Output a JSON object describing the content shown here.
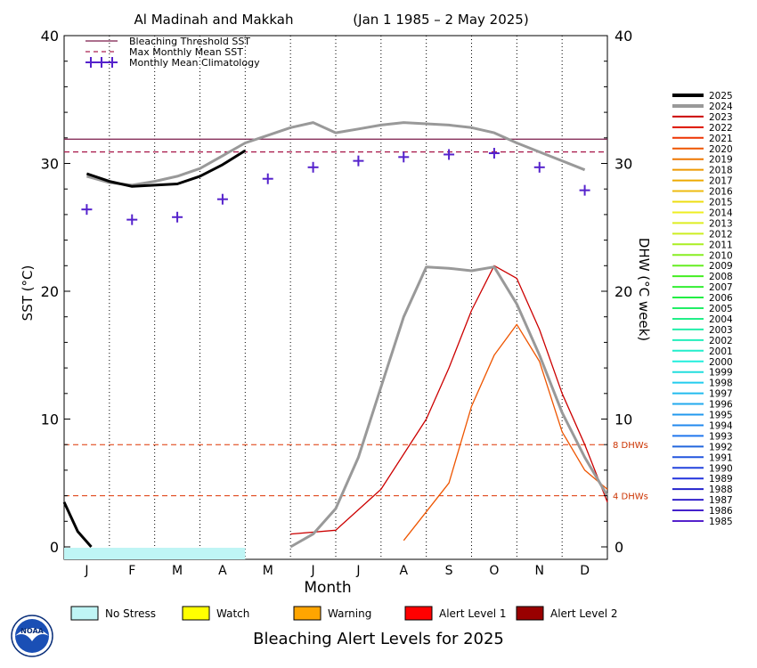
{
  "chart_data": {
    "type": "line",
    "title": "Al Madinah and Makkah",
    "subtitle": "(Jan 1 1985 – 2 May 2025)",
    "xlabel": "Month",
    "ylabel_left": "SST (°C)",
    "ylabel_right": "DHW (°C week)",
    "ylim_left": [
      0,
      40
    ],
    "ylim_right": [
      0,
      40
    ],
    "month_labels": [
      "J",
      "F",
      "M",
      "A",
      "M",
      "J",
      "J",
      "A",
      "S",
      "O",
      "N",
      "D"
    ],
    "y_ticks_left": [
      "0",
      "10",
      "20",
      "30",
      "40"
    ],
    "y_ticks_right": [
      "0",
      "10",
      "20",
      "30",
      "40"
    ],
    "bleaching_threshold_sst": 31.9,
    "max_monthly_mean_sst": 30.9,
    "dhw_reference_lines": [
      {
        "value": 8,
        "label": "8 DHWs"
      },
      {
        "value": 4,
        "label": "4 DHWs"
      }
    ],
    "legend": {
      "threshold_label": "Bleaching Threshold SST",
      "mmm_label": "Max Monthly Mean SST",
      "climatology_label": "Monthly Mean Climatology"
    },
    "climatology": {
      "months": [
        1,
        2,
        3,
        4,
        5,
        6,
        7,
        8,
        9,
        10,
        11,
        12
      ],
      "sst": [
        26.4,
        25.6,
        25.8,
        27.2,
        28.8,
        29.7,
        30.2,
        30.5,
        30.7,
        30.8,
        29.7,
        27.9
      ]
    },
    "series": [
      {
        "name": "2025",
        "color": "#000000",
        "sst_months": [
          0.5,
          1.0,
          1.5,
          2.0,
          2.5,
          3.0,
          3.5,
          4.0
        ],
        "sst": [
          29.2,
          28.6,
          28.2,
          28.3,
          28.4,
          29.0,
          29.9,
          31.0
        ],
        "dhw_months": [
          0.0,
          0.3,
          0.6
        ],
        "dhw": [
          3.5,
          1.2,
          0.0
        ]
      },
      {
        "name": "2024",
        "color": "#999999",
        "sst_months": [
          0.5,
          1.0,
          1.5,
          2.0,
          2.5,
          3.0,
          3.5,
          4.0,
          4.5,
          5.0,
          5.5,
          6.0,
          6.5,
          7.0,
          7.5,
          8.0,
          8.5,
          9.0,
          9.5,
          10.0,
          10.5,
          11.0,
          11.5
        ],
        "sst": [
          29.0,
          28.5,
          28.3,
          28.6,
          29.0,
          29.6,
          30.6,
          31.6,
          32.2,
          32.8,
          33.2,
          32.4,
          32.7,
          33.0,
          33.2,
          33.1,
          33.0,
          32.8,
          32.4,
          31.6,
          30.9,
          30.2,
          29.5
        ],
        "dhw_months": [
          5.0,
          5.5,
          6.0,
          6.5,
          7.0,
          7.5,
          8.0,
          8.5,
          9.0,
          9.5,
          10.0,
          10.5,
          11.0,
          11.5,
          12.0
        ],
        "dhw": [
          0.0,
          1.0,
          3.0,
          7.0,
          12.5,
          18.0,
          21.9,
          21.8,
          21.6,
          21.9,
          19.0,
          15.0,
          10.5,
          7.0,
          4.0
        ]
      },
      {
        "name": "2023",
        "color": "#cc0000",
        "dhw_months": [
          5.0,
          6.0,
          7.0,
          8.0,
          8.5,
          9.0,
          9.5,
          10.0,
          10.5,
          11.0,
          11.5,
          12.0
        ],
        "dhw": [
          1.0,
          1.3,
          4.5,
          10.0,
          14.0,
          18.5,
          22.0,
          21.0,
          17.0,
          12.0,
          8.0,
          3.5
        ]
      },
      {
        "name": "2022",
        "color": "#dd1100"
      },
      {
        "name": "2021",
        "color": "#ee3300"
      },
      {
        "name": "2020",
        "color": "#ee5500",
        "dhw_months": [
          7.5,
          8.5,
          9.0,
          9.5,
          10.0,
          10.5,
          11.0,
          11.5,
          12.0
        ],
        "dhw": [
          0.5,
          5.0,
          11.0,
          15.0,
          17.4,
          14.5,
          9.0,
          6.0,
          4.5
        ]
      },
      {
        "name": "2019",
        "color": "#ee7700"
      },
      {
        "name": "2018",
        "color": "#ee9900"
      },
      {
        "name": "2017",
        "color": "#eeaa00"
      },
      {
        "name": "2016",
        "color": "#eebb11"
      },
      {
        "name": "2015",
        "color": "#eedd11"
      },
      {
        "name": "2014",
        "color": "#eeee22"
      },
      {
        "name": "2013",
        "color": "#ddee22"
      },
      {
        "name": "2012",
        "color": "#ccee22"
      },
      {
        "name": "2011",
        "color": "#aaee22"
      },
      {
        "name": "2010",
        "color": "#88ee22"
      },
      {
        "name": "2009",
        "color": "#66ee22"
      },
      {
        "name": "2008",
        "color": "#44ee22"
      },
      {
        "name": "2007",
        "color": "#33ee33"
      },
      {
        "name": "2006",
        "color": "#22ee44"
      },
      {
        "name": "2005",
        "color": "#22ee66"
      },
      {
        "name": "2004",
        "color": "#22ee88"
      },
      {
        "name": "2003",
        "color": "#22eeaa"
      },
      {
        "name": "2002",
        "color": "#22eebb"
      },
      {
        "name": "2001",
        "color": "#22eecc"
      },
      {
        "name": "2000",
        "color": "#22eedd"
      },
      {
        "name": "1999",
        "color": "#22dddd"
      },
      {
        "name": "1998",
        "color": "#22ccee"
      },
      {
        "name": "1997",
        "color": "#22bbee"
      },
      {
        "name": "1996",
        "color": "#22aaee"
      },
      {
        "name": "1995",
        "color": "#2299ee"
      },
      {
        "name": "1994",
        "color": "#2288ee"
      },
      {
        "name": "1993",
        "color": "#2277ee"
      },
      {
        "name": "1992",
        "color": "#2266dd"
      },
      {
        "name": "1991",
        "color": "#2255dd"
      },
      {
        "name": "1990",
        "color": "#2244dd"
      },
      {
        "name": "1989",
        "color": "#2233dd"
      },
      {
        "name": "1988",
        "color": "#2222cc"
      },
      {
        "name": "1987",
        "color": "#3322cc"
      },
      {
        "name": "1986",
        "color": "#4422cc"
      },
      {
        "name": "1985",
        "color": "#5522cc"
      }
    ],
    "alert_levels": [
      {
        "label": "No Stress",
        "color": "#bff5f5"
      },
      {
        "label": "Watch",
        "color": "#ffff00"
      },
      {
        "label": "Warning",
        "color": "#ffa500"
      },
      {
        "label": "Alert Level 1",
        "color": "#ff0000"
      },
      {
        "label": "Alert Level 2",
        "color": "#990000"
      }
    ],
    "alert_bar_2025": {
      "level": "No Stress",
      "start_month": 0,
      "end_month": 4
    }
  },
  "footer": {
    "title": "Bleaching Alert Levels for 2025",
    "logo_text": "NOAA"
  }
}
